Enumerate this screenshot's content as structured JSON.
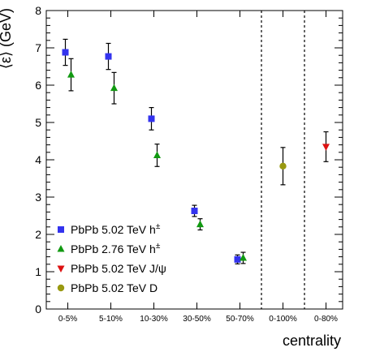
{
  "chart_data": {
    "type": "scatter",
    "xlabel": "centrality",
    "ylabel": "⟨ε⟩ (GeV)",
    "ylim": [
      0,
      8
    ],
    "y_ticks": [
      "0",
      "1",
      "2",
      "3",
      "4",
      "5",
      "6",
      "7",
      "8"
    ],
    "categories": [
      "0-5%",
      "5-10%",
      "10-30%",
      "30-50%",
      "50-70%",
      "0-100%",
      "0-80%"
    ],
    "separators_after": [
      "50-70%",
      "0-100%"
    ],
    "series": [
      {
        "name": "PbPb 5.02 TeV h",
        "superscript": "±",
        "marker": "square",
        "color": "#3333ee",
        "points": [
          {
            "category": "0-5%",
            "y": 6.88,
            "err_lo": 0.35,
            "err_hi": 0.35
          },
          {
            "category": "5-10%",
            "y": 6.77,
            "err_lo": 0.35,
            "err_hi": 0.35
          },
          {
            "category": "10-30%",
            "y": 5.1,
            "err_lo": 0.3,
            "err_hi": 0.3
          },
          {
            "category": "30-50%",
            "y": 2.63,
            "err_lo": 0.15,
            "err_hi": 0.15
          },
          {
            "category": "50-70%",
            "y": 1.33,
            "err_lo": 0.12,
            "err_hi": 0.12
          }
        ]
      },
      {
        "name": "PbPb 2.76 TeV h",
        "superscript": "±",
        "marker": "triangle-up",
        "color": "#119911",
        "points": [
          {
            "category": "0-5%",
            "y": 6.28,
            "err_lo": 0.43,
            "err_hi": 0.43
          },
          {
            "category": "5-10%",
            "y": 5.92,
            "err_lo": 0.42,
            "err_hi": 0.42
          },
          {
            "category": "10-30%",
            "y": 4.12,
            "err_lo": 0.3,
            "err_hi": 0.3
          },
          {
            "category": "30-50%",
            "y": 2.27,
            "err_lo": 0.15,
            "err_hi": 0.15
          },
          {
            "category": "50-70%",
            "y": 1.37,
            "err_lo": 0.15,
            "err_hi": 0.15
          }
        ]
      },
      {
        "name": "PbPb 5.02 TeV J/ψ",
        "superscript": "",
        "marker": "triangle-down",
        "color": "#dd1111",
        "points": [
          {
            "category": "0-80%",
            "y": 4.35,
            "err_lo": 0.4,
            "err_hi": 0.4
          }
        ]
      },
      {
        "name": "PbPb 5.02 TeV D",
        "superscript": "",
        "marker": "circle",
        "color": "#999911",
        "points": [
          {
            "category": "0-100%",
            "y": 3.83,
            "err_lo": 0.5,
            "err_hi": 0.5
          }
        ]
      }
    ],
    "legend_position": "bottom-left",
    "grid": false
  }
}
